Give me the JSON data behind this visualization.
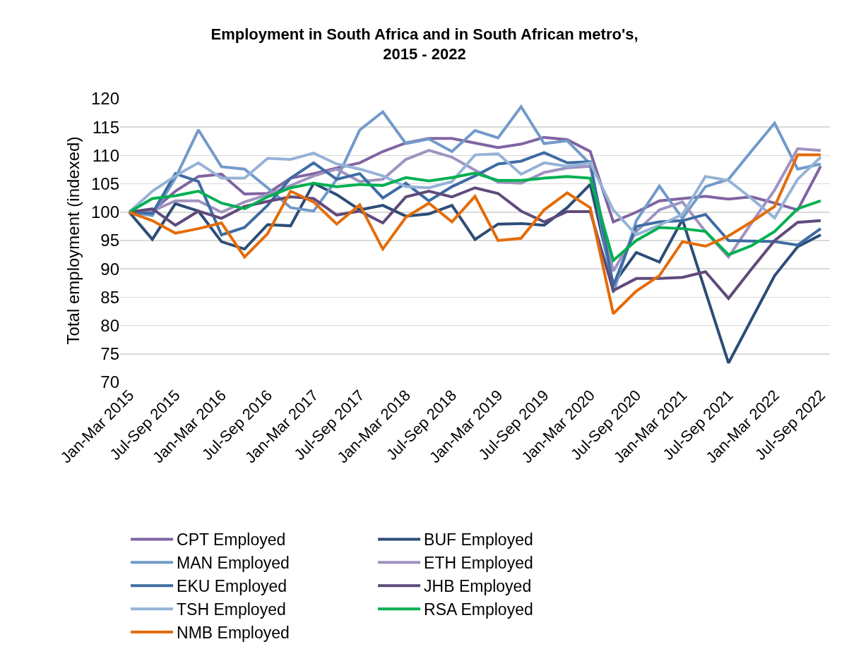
{
  "chart_data": {
    "type": "line",
    "title": "Employment in South Africa and in South African metro's,\n2015 - 2022",
    "ylabel": "Total employment (indexed)",
    "categories": [
      "Jan-Mar 2015",
      null,
      "Jul-Sep 2015",
      null,
      "Jan-Mar 2016",
      null,
      "Jul-Sep 2016",
      null,
      "Jan-Mar 2017",
      null,
      "Jul-Sep 2017",
      null,
      "Jan-Mar 2018",
      null,
      "Jul-Sep 2018",
      null,
      "Jan-Mar 2019",
      null,
      "Jul-Sep 2019",
      null,
      "Jan-Mar 2020",
      null,
      "Jul-Sep 2020",
      null,
      "Jan-Mar 2021",
      null,
      "Jul-Sep 2021",
      null,
      "Jan-Mar 2022",
      null,
      "Jul-Sep 2022"
    ],
    "ylim": [
      70,
      120
    ],
    "yticks": [
      70,
      75,
      80,
      85,
      90,
      95,
      100,
      105,
      110,
      115,
      120
    ],
    "grid": "y",
    "legend": "bottom",
    "marker": "none",
    "line_style": "solid",
    "series": [
      {
        "name": "CPT Employed",
        "color": "#8064a2",
        "values": [
          100,
          100.2,
          103.7,
          106.3,
          106.7,
          103.2,
          103.3,
          106,
          106.8,
          107.8,
          108.7,
          110.7,
          112.2,
          113,
          113,
          112.2,
          111.4,
          112,
          113.2,
          112.8,
          110.7,
          98.3,
          100,
          102,
          102.4,
          102.8,
          102.3,
          102.7,
          101.6,
          100.4,
          108.1
        ]
      },
      {
        "name": "BUF Employed",
        "color": "#2c4d75",
        "values": [
          100,
          95.2,
          101.5,
          100.2,
          94.8,
          93.5,
          97.8,
          97.6,
          105.1,
          103.1,
          100.4,
          101.2,
          99.3,
          99.7,
          101.2,
          95.2,
          97.9,
          98,
          97.7,
          100.8,
          104.9,
          87.3,
          92.9,
          91.2,
          98.7,
          86,
          73.4,
          81.1,
          88.8,
          93.9,
          96
        ]
      },
      {
        "name": "MAN Employed",
        "color": "#729aca",
        "values": [
          100,
          99.4,
          106,
          114.5,
          108,
          107.6,
          104.3,
          100.8,
          100.2,
          105.8,
          114.5,
          117.7,
          112.1,
          112.9,
          110.7,
          114.4,
          113.1,
          118.6,
          112.1,
          112.6,
          108.5,
          85.8,
          98.5,
          104.6,
          98.9,
          104.5,
          105.8,
          110.8,
          115.7,
          107.6,
          108.5
        ]
      },
      {
        "name": "ETH Employed",
        "color": "#a092c0",
        "values": [
          100,
          100.2,
          102,
          102,
          100,
          101.8,
          103.1,
          104.7,
          106.4,
          107.6,
          105.4,
          105.8,
          109.3,
          110.9,
          109.7,
          107.4,
          105.3,
          105.1,
          107,
          107.8,
          108.1,
          89.6,
          96.6,
          100.4,
          101.8,
          96.6,
          92.1,
          98.1,
          103.9,
          111.2,
          110.9
        ]
      },
      {
        "name": "EKU Employed",
        "color": "#3e6ca4",
        "values": [
          100,
          99.8,
          106.8,
          105.4,
          96,
          97.3,
          101.2,
          106,
          108.7,
          105.8,
          106.8,
          102.5,
          105.1,
          102,
          104.5,
          106.4,
          108.5,
          109,
          110.5,
          108.7,
          108.9,
          87,
          97.5,
          98.3,
          98.5,
          99.6,
          95,
          94.9,
          94.8,
          94.2,
          97.1
        ]
      },
      {
        "name": "JHB Employed",
        "color": "#604a7b",
        "values": [
          100,
          100.6,
          97.7,
          100.2,
          98.9,
          101,
          101.9,
          102.7,
          102.4,
          99.5,
          100.2,
          98.1,
          102.7,
          103.7,
          102.7,
          104.3,
          103.3,
          100.2,
          98.3,
          100.1,
          100.1,
          86.2,
          88.3,
          88.3,
          88.5,
          89.5,
          84.8,
          90,
          95,
          98.2,
          98.5
        ]
      },
      {
        "name": "TSH Employed",
        "color": "#95b3d7",
        "values": [
          100,
          103.7,
          106.4,
          108.7,
          106,
          106,
          109.5,
          109.3,
          110.4,
          108.5,
          107.6,
          106.4,
          104.5,
          104.3,
          105.4,
          110.1,
          110.3,
          106.7,
          108.7,
          108.1,
          108.7,
          100.4,
          96,
          97.7,
          99.6,
          106.3,
          105.6,
          102.4,
          99,
          105.8,
          109.7
        ]
      },
      {
        "name": "RSA Employed",
        "color": "#00b050",
        "values": [
          100,
          102.4,
          102.9,
          103.7,
          101.6,
          100.6,
          102.7,
          104.3,
          105.1,
          104.5,
          104.9,
          104.7,
          106.1,
          105.5,
          106.1,
          106.9,
          105.6,
          105.6,
          106,
          106.3,
          106,
          91.5,
          95,
          97.3,
          97.1,
          96.6,
          92.5,
          94.1,
          96.6,
          100.6,
          102
        ]
      },
      {
        "name": "NMB Employed",
        "color": "#e46c0a",
        "values": [
          100,
          98.5,
          96.3,
          97.1,
          98.1,
          92.1,
          96.2,
          103.7,
          101.8,
          97.9,
          101.3,
          93.5,
          99.1,
          101.6,
          98.3,
          102.8,
          95,
          95.4,
          100.4,
          103.4,
          100.8,
          82.1,
          86.1,
          88.8,
          94.8,
          94,
          95.8,
          98.3,
          101,
          110.1,
          110.1
        ]
      }
    ]
  }
}
